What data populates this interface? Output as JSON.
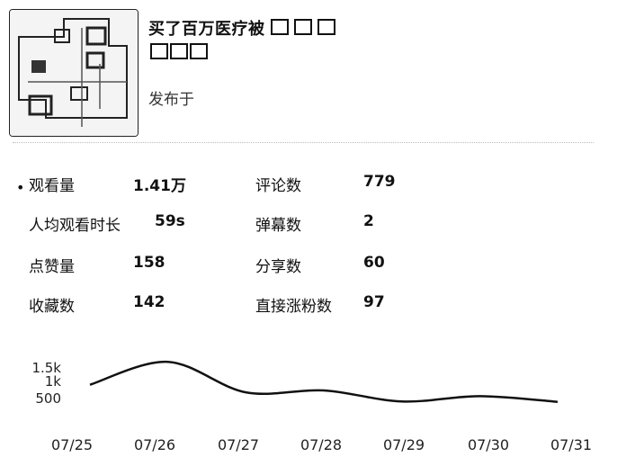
{
  "video": {
    "title": "买了百万医疗被",
    "subtitle": "",
    "publish_label": "发布于"
  },
  "stats": [
    {
      "label": "观看量",
      "value": "1.41万"
    },
    {
      "label": "评论数",
      "value": "779"
    },
    {
      "label": "人均观看时长",
      "value": "59s"
    },
    {
      "label": "弹幕数",
      "value": "2"
    },
    {
      "label": "点赞量",
      "value": "158"
    },
    {
      "label": "分享数",
      "value": "60"
    },
    {
      "label": "收藏数",
      "value": "142"
    },
    {
      "label": "直接涨粉数",
      "value": "97"
    }
  ],
  "chart_data": {
    "type": "line",
    "x": [
      "07/25",
      "07/26",
      "07/27",
      "07/28",
      "07/29",
      "07/30",
      "07/31"
    ],
    "y_ticks": [
      "500",
      "1k",
      "1.5k"
    ],
    "series": [
      {
        "values": [
          1000,
          1600,
          800,
          850,
          560,
          700,
          550
        ]
      }
    ],
    "ylim": [
      0,
      1700
    ],
    "line_color": "#111111"
  }
}
